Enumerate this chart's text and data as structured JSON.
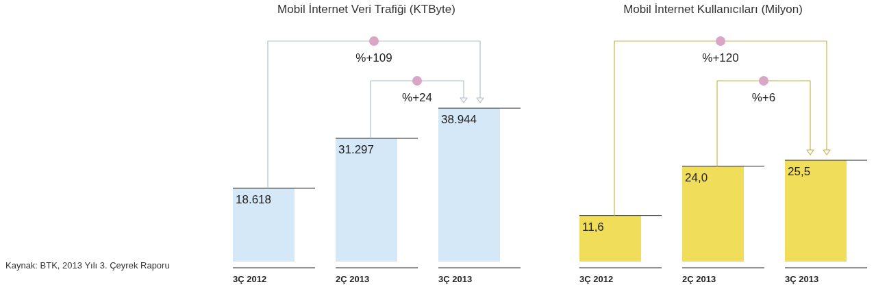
{
  "chart_data": [
    {
      "type": "bar",
      "title": "Mobil İnternet Veri Trafiği (KTByte)",
      "categories": [
        "3Ç 2012",
        "2Ç 2013",
        "3Ç 2013"
      ],
      "values": [
        18618,
        31297,
        38944
      ],
      "value_labels": [
        "18.618",
        "31.297",
        "38.944"
      ],
      "color": "#d5e8f7",
      "tick_labels": "x",
      "annotations": [
        "%+109",
        "%+24",
        "Kaynak: BTK, 2013 Yılı 3. Çeyrek Raporu"
      ]
    },
    {
      "type": "bar",
      "title": "Mobil İnternet Kullanıcıları (Milyon)",
      "categories": [
        "3Ç 2012",
        "2Ç 2013",
        "3Ç 2013"
      ],
      "values": [
        11.6,
        24.0,
        25.5
      ],
      "value_labels": [
        "11,6",
        "24,0",
        "25,5"
      ],
      "color": "#f0dd5a",
      "tick_labels": "x",
      "annotations": [
        "%+120",
        "%+6"
      ]
    }
  ]
}
